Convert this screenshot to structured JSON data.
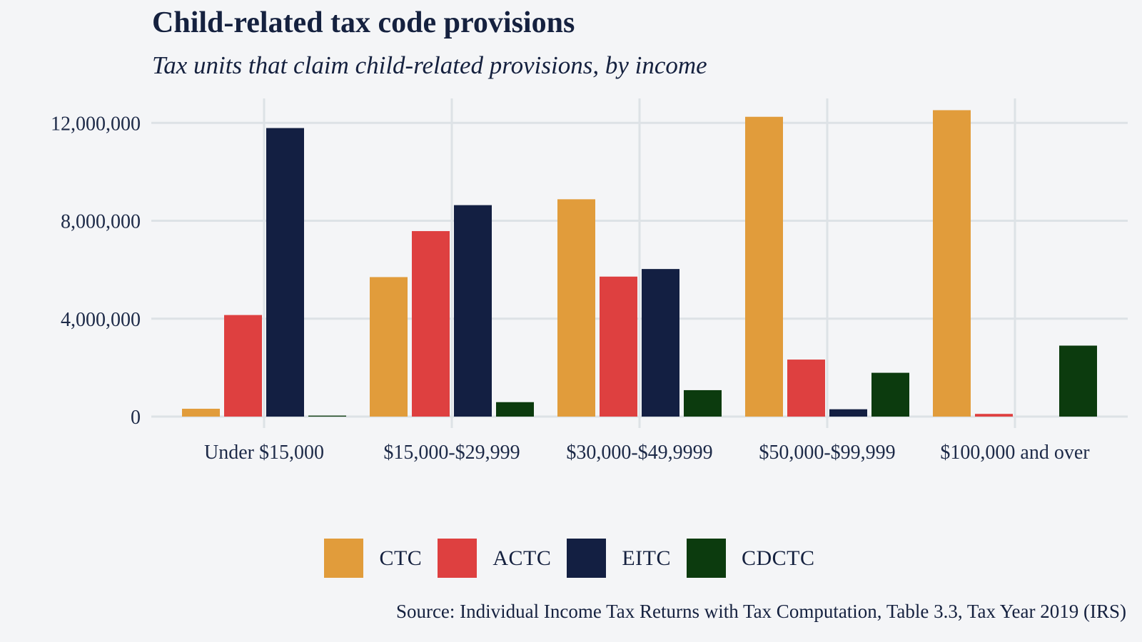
{
  "chart_data": {
    "type": "bar",
    "title": "Child-related tax code provisions",
    "subtitle": "Tax units that claim child-related provisions, by income",
    "xlabel": "",
    "ylabel": "",
    "categories": [
      "Under $15,000",
      "$15,000-$29,999",
      "$30,000-$49,9999",
      "$50,000-$99,999",
      "$100,000 and over"
    ],
    "series": [
      {
        "name": "CTC",
        "color": "#e19c3b",
        "values": [
          320000,
          5700000,
          8880000,
          12250000,
          12520000
        ]
      },
      {
        "name": "ACTC",
        "color": "#de4040",
        "values": [
          4150000,
          7580000,
          5720000,
          2330000,
          110000
        ]
      },
      {
        "name": "EITC",
        "color": "#131f42",
        "values": [
          11790000,
          8640000,
          6030000,
          300000,
          0
        ]
      },
      {
        "name": "CDCTC",
        "color": "#0c3b0e",
        "values": [
          40000,
          590000,
          1080000,
          1790000,
          2900000
        ]
      }
    ],
    "ylim": [
      0,
      13000000
    ],
    "yticks": [
      0,
      4000000,
      8000000,
      12000000
    ],
    "ytick_labels": [
      "0",
      "4,000,000",
      "8,000,000",
      "12,000,000"
    ],
    "grid": true,
    "legend_position": "bottom"
  },
  "source": "Source: Individual Income Tax Returns with Tax Computation, Table 3.3, Tax Year 2019 (IRS)"
}
